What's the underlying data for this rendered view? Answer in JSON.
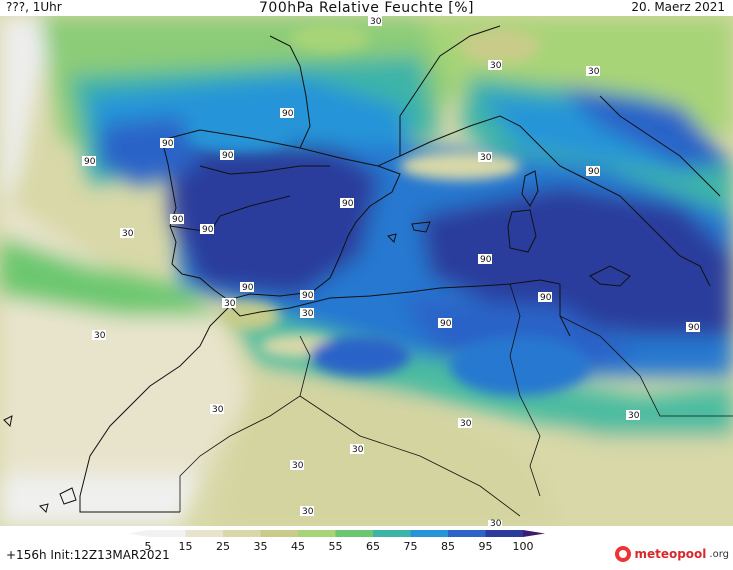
{
  "header": {
    "left": "???, 1Uhr",
    "title": "700hPa Relative Feuchte [%]",
    "date": "20. Maerz 2021"
  },
  "footer": {
    "forecast_info": "+156h Init:12Z13MAR2021",
    "logo_text_brand": "meteopool",
    "logo_text_tld": ".org"
  },
  "legend": {
    "ticks": [
      "5",
      "15",
      "25",
      "35",
      "45",
      "55",
      "65",
      "75",
      "85",
      "95",
      "100"
    ],
    "colors": [
      "#f2f2f2",
      "#e8e4cc",
      "#d8d8a8",
      "#c8cc88",
      "#a8d478",
      "#6cc870",
      "#3cb4a8",
      "#2894d8",
      "#2c64c8",
      "#2c3c9c",
      "#3c1c6c"
    ]
  },
  "contour_labels": [
    {
      "text": "30"
    },
    {
      "text": "30"
    },
    {
      "text": "30"
    },
    {
      "text": "90"
    },
    {
      "text": "90"
    },
    {
      "text": "90"
    },
    {
      "text": "90"
    },
    {
      "text": "90"
    },
    {
      "text": "90"
    },
    {
      "text": "30"
    },
    {
      "text": "90"
    },
    {
      "text": "90"
    },
    {
      "text": "90"
    },
    {
      "text": "90"
    },
    {
      "text": "90"
    },
    {
      "text": "90"
    },
    {
      "text": "30"
    },
    {
      "text": "30"
    },
    {
      "text": "30"
    },
    {
      "text": "30"
    },
    {
      "text": "30"
    },
    {
      "text": "30"
    },
    {
      "text": "30"
    },
    {
      "text": "30"
    },
    {
      "text": "30"
    },
    {
      "text": "30"
    },
    {
      "text": "90"
    },
    {
      "text": "90"
    },
    {
      "text": "30"
    }
  ]
}
